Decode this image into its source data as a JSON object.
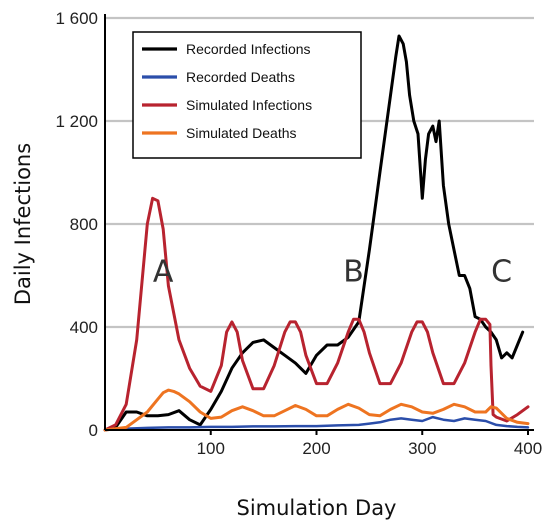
{
  "chart_data": {
    "type": "line",
    "xlabel": "Simulation Day",
    "ylabel": "Daily Infections",
    "xlim": [
      0,
      400
    ],
    "ylim": [
      0,
      1600
    ],
    "x_ticks": [
      100,
      200,
      300,
      400
    ],
    "x_tick_labels": [
      "100",
      "200",
      "300",
      "400"
    ],
    "y_ticks": [
      0,
      400,
      800,
      1200,
      1600
    ],
    "y_tick_labels": [
      "0",
      "400",
      "800",
      "1 200",
      "1 600"
    ],
    "grid": "horizontal",
    "legend_position": "top-left",
    "series": [
      {
        "name": "Recorded Infections",
        "color": "#000000",
        "x": [
          0,
          10,
          20,
          30,
          40,
          50,
          60,
          70,
          80,
          90,
          100,
          110,
          120,
          130,
          140,
          150,
          160,
          170,
          180,
          190,
          200,
          210,
          220,
          230,
          240,
          250,
          255,
          260,
          265,
          270,
          275,
          278,
          282,
          285,
          288,
          292,
          296,
          300,
          303,
          306,
          310,
          313,
          316,
          320,
          325,
          330,
          335,
          340,
          345,
          350,
          355,
          360,
          365,
          370,
          375,
          380,
          385,
          390,
          395
        ],
        "y": [
          0,
          10,
          70,
          70,
          55,
          55,
          60,
          75,
          40,
          20,
          80,
          150,
          240,
          300,
          340,
          350,
          320,
          290,
          260,
          220,
          290,
          330,
          330,
          360,
          420,
          700,
          850,
          1000,
          1150,
          1300,
          1450,
          1530,
          1500,
          1430,
          1300,
          1200,
          1150,
          900,
          1050,
          1150,
          1180,
          1120,
          1200,
          950,
          800,
          700,
          600,
          600,
          550,
          440,
          430,
          400,
          380,
          350,
          280,
          300,
          280,
          330,
          380
        ]
      },
      {
        "name": "Recorded Deaths",
        "color": "#2b4eaa",
        "x": [
          0,
          20,
          40,
          60,
          80,
          100,
          120,
          140,
          160,
          180,
          200,
          220,
          240,
          250,
          260,
          270,
          280,
          290,
          300,
          310,
          320,
          330,
          340,
          350,
          360,
          370,
          380,
          390,
          400
        ],
        "y": [
          0,
          5,
          8,
          10,
          10,
          12,
          12,
          14,
          14,
          15,
          15,
          18,
          20,
          25,
          30,
          40,
          45,
          40,
          35,
          50,
          40,
          35,
          45,
          40,
          35,
          20,
          15,
          12,
          10
        ]
      },
      {
        "name": "Simulated Infections",
        "color": "#b8232f",
        "x": [
          0,
          10,
          20,
          30,
          40,
          45,
          50,
          55,
          60,
          70,
          80,
          90,
          100,
          110,
          115,
          120,
          125,
          130,
          140,
          150,
          160,
          170,
          175,
          180,
          185,
          190,
          200,
          210,
          220,
          230,
          235,
          240,
          245,
          250,
          260,
          270,
          280,
          290,
          295,
          300,
          305,
          310,
          320,
          330,
          340,
          350,
          355,
          360,
          364,
          365,
          367,
          370,
          380,
          390,
          400
        ],
        "y": [
          0,
          20,
          100,
          350,
          800,
          900,
          890,
          780,
          560,
          350,
          240,
          170,
          150,
          250,
          380,
          420,
          380,
          270,
          160,
          160,
          250,
          380,
          420,
          420,
          380,
          290,
          180,
          180,
          260,
          380,
          430,
          430,
          380,
          300,
          180,
          180,
          260,
          380,
          420,
          420,
          380,
          300,
          180,
          180,
          260,
          380,
          430,
          430,
          410,
          250,
          60,
          50,
          35,
          60,
          90
        ]
      },
      {
        "name": "Simulated Deaths",
        "color": "#ee7421",
        "x": [
          0,
          20,
          40,
          50,
          55,
          60,
          65,
          70,
          80,
          90,
          100,
          110,
          120,
          130,
          140,
          150,
          160,
          170,
          180,
          190,
          200,
          210,
          220,
          230,
          240,
          250,
          260,
          270,
          280,
          290,
          300,
          310,
          320,
          330,
          340,
          350,
          360,
          365,
          370,
          380,
          390,
          400
        ],
        "y": [
          0,
          10,
          70,
          120,
          145,
          155,
          150,
          140,
          110,
          70,
          45,
          50,
          75,
          90,
          75,
          55,
          55,
          75,
          95,
          80,
          55,
          55,
          80,
          100,
          85,
          60,
          55,
          80,
          100,
          90,
          70,
          65,
          80,
          100,
          90,
          70,
          70,
          90,
          85,
          45,
          30,
          25
        ]
      }
    ],
    "annotations": [
      {
        "text": "A",
        "x": 55,
        "y": 620
      },
      {
        "text": "B",
        "x": 235,
        "y": 620
      },
      {
        "text": "C",
        "x": 375,
        "y": 620
      }
    ]
  }
}
